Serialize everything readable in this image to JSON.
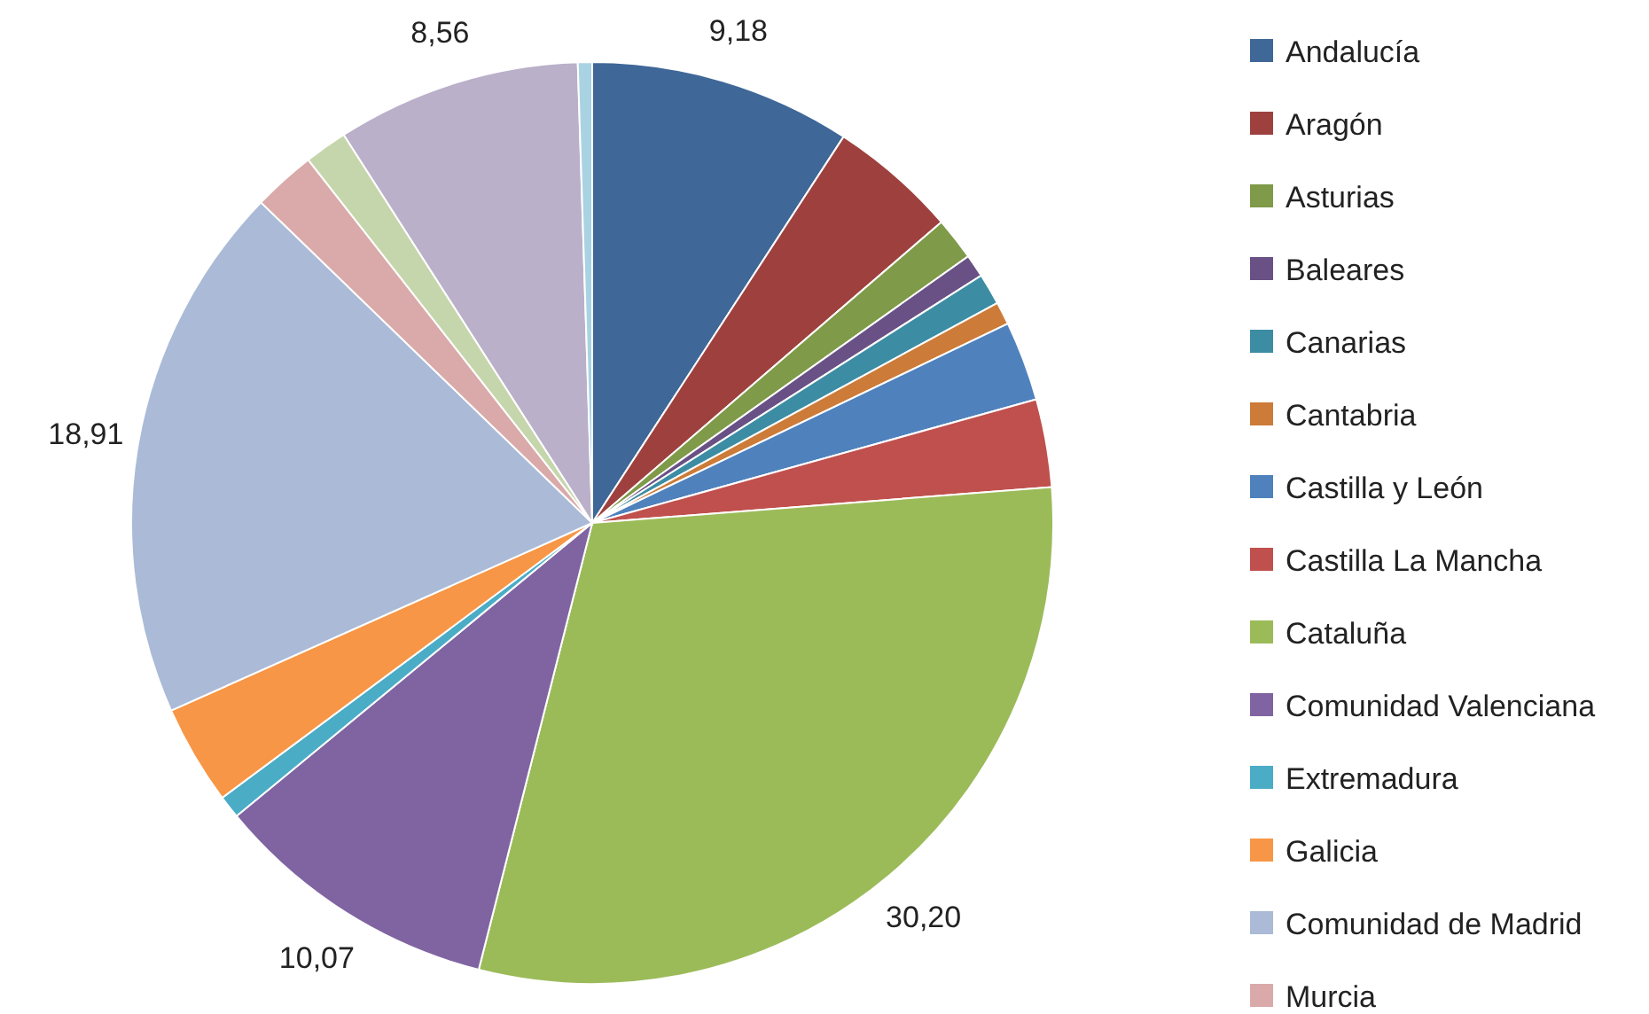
{
  "chart_data": {
    "type": "pie",
    "categories": [
      "Andalucía",
      "Aragón",
      "Asturias",
      "Baleares",
      "Canarias",
      "Cantabria",
      "Castilla y León",
      "Castilla La Mancha",
      "Cataluña",
      "Comunidad Valenciana",
      "Extremadura",
      "Galicia",
      "Comunidad de Madrid",
      "Murcia",
      null,
      null,
      null
    ],
    "values": [
      9.18,
      4.5,
      1.5,
      0.8,
      1.1,
      0.8,
      2.8,
      3.08,
      30.2,
      10.07,
      0.8,
      3.5,
      18.91,
      2.2,
      1.5,
      8.56,
      0.5
    ],
    "value_labels": [
      "9,18",
      null,
      null,
      null,
      null,
      null,
      null,
      null,
      "30,20",
      "10,07",
      null,
      null,
      "18,91",
      null,
      null,
      "8,56",
      null
    ],
    "colors": [
      "#3f6797",
      "#9e413e",
      "#7f9a48",
      "#695185",
      "#3c8da3",
      "#cc7b38",
      "#4f81bd",
      "#c0504d",
      "#9bbb59",
      "#8064a2",
      "#4bacc6",
      "#f79646",
      "#aabad7",
      "#d9aaa9",
      "#c6d6ac",
      "#bab0c9",
      "#a9d3e3"
    ],
    "legend": "right"
  }
}
